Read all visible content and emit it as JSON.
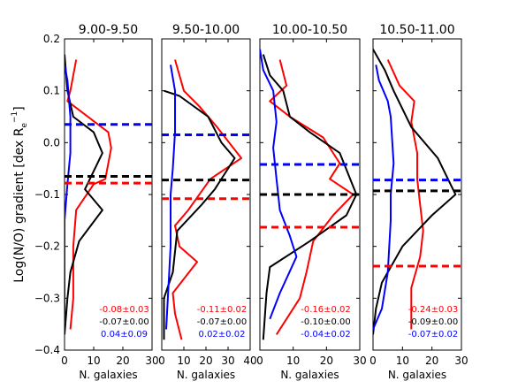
{
  "chart_data": [
    {
      "type": "line",
      "title": "9.00-9.50",
      "xlabel": "N. galaxies",
      "ylabel": "Log(N/O) gradient [dex R",
      "ylabel_sub": "e",
      "ylabel_sup": "−1",
      "ylabel_close": "]",
      "xlim": [
        0,
        30
      ],
      "ylim": [
        -0.4,
        0.2
      ],
      "xticks": [
        "0",
        "10",
        "20",
        "30"
      ],
      "yticks": [
        "0.2",
        "0.1",
        "0.0",
        "−0.1",
        "−0.2",
        "−0.3",
        "−0.4"
      ],
      "series": [
        {
          "color": "#ff0000",
          "points": [
            [
              4,
              0.16
            ],
            [
              2,
              0.1
            ],
            [
              1,
              0.08
            ],
            [
              15,
              0.02
            ],
            [
              16,
              -0.01
            ],
            [
              14,
              -0.07
            ],
            [
              10,
              -0.08
            ],
            [
              4,
              -0.13
            ],
            [
              3,
              -0.2
            ],
            [
              3,
              -0.3
            ],
            [
              2,
              -0.36
            ]
          ]
        },
        {
          "color": "#000000",
          "points": [
            [
              0,
              0.17
            ],
            [
              1,
              0.1
            ],
            [
              3,
              0.05
            ],
            [
              10,
              0.02
            ],
            [
              13,
              -0.02
            ],
            [
              7,
              -0.09
            ],
            [
              13,
              -0.13
            ],
            [
              5,
              -0.19
            ],
            [
              2,
              -0.25
            ],
            [
              1,
              -0.3
            ],
            [
              0,
              -0.37
            ]
          ]
        },
        {
          "color": "#0000ff",
          "points": [
            [
              0,
              0.15
            ],
            [
              1,
              0.12
            ],
            [
              2,
              0.05
            ],
            [
              2,
              -0.02
            ],
            [
              1,
              -0.08
            ],
            [
              0,
              -0.15
            ],
            [
              0,
              -0.35
            ]
          ]
        }
      ],
      "medians": [
        {
          "color": "#0000ff",
          "y": 0.035
        },
        {
          "color": "#000000",
          "y": -0.065
        },
        {
          "color": "#ff0000",
          "y": -0.078
        }
      ],
      "annotations": [
        {
          "text": "-0.08±0.03",
          "color": "#ff0000"
        },
        {
          "text": "-0.07±0.00",
          "color": "#000000"
        },
        {
          "text": "0.04±0.09",
          "color": "#0000ff"
        }
      ]
    },
    {
      "type": "line",
      "title": "9.50-10.00",
      "xlabel": "N. galaxies",
      "xlim": [
        0,
        40
      ],
      "ylim": [
        -0.4,
        0.2
      ],
      "xticks": [
        "0",
        "10",
        "20",
        "30",
        "40"
      ],
      "series": [
        {
          "color": "#ff0000",
          "points": [
            [
              6,
              0.16
            ],
            [
              10,
              0.1
            ],
            [
              17,
              0.07
            ],
            [
              25,
              0.03
            ],
            [
              36,
              -0.03
            ],
            [
              22,
              -0.07
            ],
            [
              12,
              -0.13
            ],
            [
              6,
              -0.16
            ],
            [
              8,
              -0.2
            ],
            [
              16,
              -0.23
            ],
            [
              5,
              -0.29
            ],
            [
              6,
              -0.33
            ],
            [
              9,
              -0.38
            ]
          ]
        },
        {
          "color": "#000000",
          "points": [
            [
              1,
              0.1
            ],
            [
              8,
              0.09
            ],
            [
              21,
              0.05
            ],
            [
              27,
              0.0
            ],
            [
              33,
              -0.03
            ],
            [
              24,
              -0.09
            ],
            [
              18,
              -0.12
            ],
            [
              7,
              -0.17
            ],
            [
              5,
              -0.25
            ],
            [
              1,
              -0.3
            ],
            [
              1,
              -0.38
            ]
          ]
        },
        {
          "color": "#0000ff",
          "points": [
            [
              4,
              0.15
            ],
            [
              6,
              0.1
            ],
            [
              6,
              0.02
            ],
            [
              5,
              -0.05
            ],
            [
              4,
              -0.1
            ],
            [
              4,
              -0.2
            ],
            [
              3,
              -0.28
            ],
            [
              2,
              -0.36
            ]
          ]
        }
      ],
      "medians": [
        {
          "color": "#0000ff",
          "y": 0.015
        },
        {
          "color": "#000000",
          "y": -0.072
        },
        {
          "color": "#ff0000",
          "y": -0.108
        }
      ],
      "annotations": [
        {
          "text": "-0.11±0.02",
          "color": "#ff0000"
        },
        {
          "text": "-0.07±0.00",
          "color": "#000000"
        },
        {
          "text": "0.02±0.02",
          "color": "#0000ff"
        }
      ]
    },
    {
      "type": "line",
      "title": "10.00-10.50",
      "xlabel": "N. galaxies",
      "xlim": [
        0,
        30
      ],
      "ylim": [
        -0.4,
        0.2
      ],
      "xticks": [
        "0",
        "10",
        "20",
        "30"
      ],
      "series": [
        {
          "color": "#ff0000",
          "points": [
            [
              6,
              0.16
            ],
            [
              8,
              0.11
            ],
            [
              3,
              0.08
            ],
            [
              9,
              0.05
            ],
            [
              19,
              0.01
            ],
            [
              24,
              -0.04
            ],
            [
              21,
              -0.07
            ],
            [
              28,
              -0.1
            ],
            [
              22,
              -0.14
            ],
            [
              16,
              -0.19
            ],
            [
              14,
              -0.25
            ],
            [
              12,
              -0.3
            ],
            [
              5,
              -0.37
            ]
          ]
        },
        {
          "color": "#000000",
          "points": [
            [
              1,
              0.17
            ],
            [
              3,
              0.13
            ],
            [
              7,
              0.1
            ],
            [
              9,
              0.05
            ],
            [
              15,
              0.02
            ],
            [
              24,
              -0.02
            ],
            [
              29,
              -0.1
            ],
            [
              26,
              -0.14
            ],
            [
              15,
              -0.19
            ],
            [
              3,
              -0.24
            ],
            [
              2,
              -0.29
            ],
            [
              1,
              -0.38
            ]
          ]
        },
        {
          "color": "#0000ff",
          "points": [
            [
              0,
              0.18
            ],
            [
              1,
              0.14
            ],
            [
              4,
              0.1
            ],
            [
              5,
              0.04
            ],
            [
              4,
              -0.01
            ],
            [
              5,
              -0.07
            ],
            [
              6,
              -0.13
            ],
            [
              9,
              -0.18
            ],
            [
              11,
              -0.22
            ],
            [
              6,
              -0.29
            ],
            [
              3,
              -0.34
            ]
          ]
        }
      ],
      "medians": [
        {
          "color": "#0000ff",
          "y": -0.042
        },
        {
          "color": "#000000",
          "y": -0.1
        },
        {
          "color": "#ff0000",
          "y": -0.163
        }
      ],
      "annotations": [
        {
          "text": "-0.16±0.02",
          "color": "#ff0000"
        },
        {
          "text": "-0.10±0.00",
          "color": "#000000"
        },
        {
          "text": "-0.04±0.02",
          "color": "#0000ff"
        }
      ]
    },
    {
      "type": "line",
      "title": "10.50-11.00",
      "xlabel": "N. galaxies",
      "xlim": [
        0,
        30
      ],
      "ylim": [
        -0.4,
        0.2
      ],
      "xticks": [
        "0",
        "10",
        "20",
        "30"
      ],
      "series": [
        {
          "color": "#ff0000",
          "points": [
            [
              5,
              0.16
            ],
            [
              9,
              0.11
            ],
            [
              14,
              0.08
            ],
            [
              13,
              0.04
            ],
            [
              15,
              -0.02
            ],
            [
              15,
              -0.07
            ],
            [
              16,
              -0.12
            ],
            [
              17,
              -0.17
            ],
            [
              16,
              -0.22
            ],
            [
              13,
              -0.28
            ],
            [
              13,
              -0.36
            ]
          ]
        },
        {
          "color": "#000000",
          "points": [
            [
              0,
              0.18
            ],
            [
              4,
              0.14
            ],
            [
              7,
              0.1
            ],
            [
              13,
              0.03
            ],
            [
              22,
              -0.03
            ],
            [
              28,
              -0.1
            ],
            [
              20,
              -0.14
            ],
            [
              10,
              -0.2
            ],
            [
              3,
              -0.27
            ],
            [
              1,
              -0.32
            ],
            [
              0,
              -0.37
            ]
          ]
        },
        {
          "color": "#0000ff",
          "points": [
            [
              1,
              0.15
            ],
            [
              2,
              0.12
            ],
            [
              5,
              0.08
            ],
            [
              6,
              0.05
            ],
            [
              7,
              -0.04
            ],
            [
              6,
              -0.1
            ],
            [
              6,
              -0.15
            ],
            [
              5,
              -0.25
            ],
            [
              3,
              -0.32
            ],
            [
              0,
              -0.36
            ]
          ]
        }
      ],
      "medians": [
        {
          "color": "#0000ff",
          "y": -0.072
        },
        {
          "color": "#000000",
          "y": -0.093
        },
        {
          "color": "#ff0000",
          "y": -0.238
        }
      ],
      "annotations": [
        {
          "text": "-0.24±0.03",
          "color": "#ff0000"
        },
        {
          "text": "-0.09±0.00",
          "color": "#000000"
        },
        {
          "text": "-0.07±0.02",
          "color": "#0000ff"
        }
      ]
    }
  ]
}
